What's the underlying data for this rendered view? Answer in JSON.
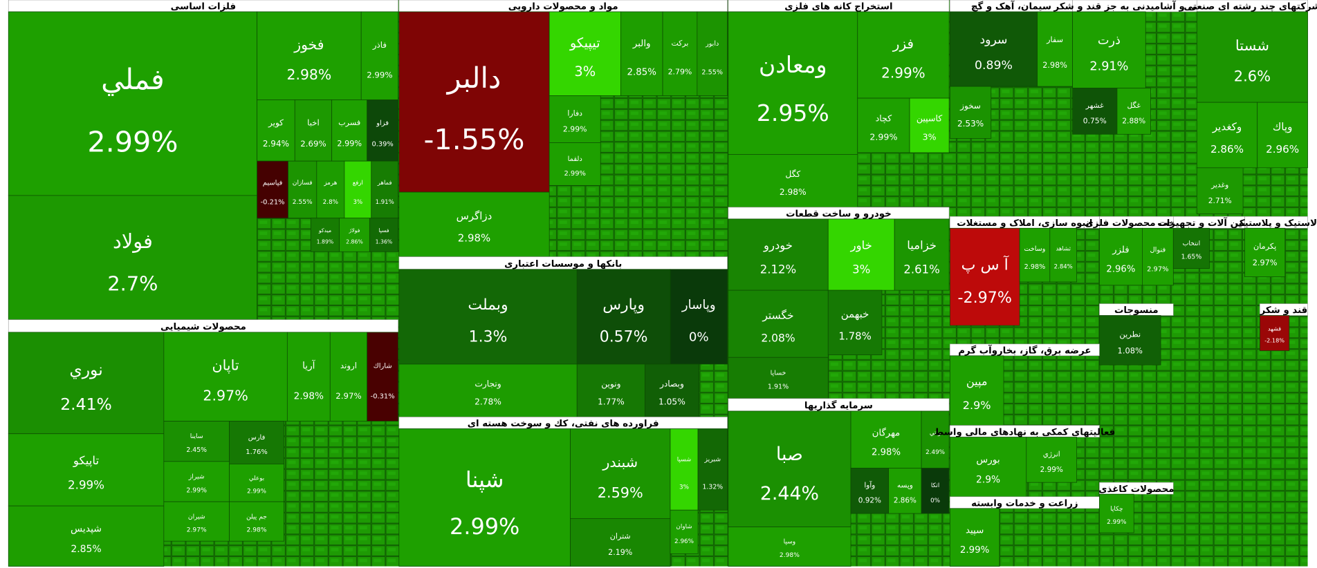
{
  "chart_data": {
    "type": "treemap",
    "sectors": [
      {
        "title": "فلزات اساسی",
        "tiles": [
          {
            "name": "فملي",
            "value": 2.99,
            "value_label": "2.99%"
          },
          {
            "name": "فولاد",
            "value": 2.7,
            "value_label": "2.7%"
          },
          {
            "name": "فخوز",
            "value": 2.98,
            "value_label": "2.98%"
          },
          {
            "name": "فاذر",
            "value": 2.99,
            "value_label": "2.99%"
          },
          {
            "name": "کویر",
            "value": 2.94,
            "value_label": "2.94%"
          },
          {
            "name": "اخبا",
            "value": 2.69,
            "value_label": "2.69%"
          },
          {
            "name": "فسرب",
            "value": 2.99,
            "value_label": "2.99%"
          },
          {
            "name": "فزاو",
            "value": 0.39,
            "value_label": "0.39%"
          },
          {
            "name": "فپاسیم",
            "value": -0.21,
            "value_label": "-0.21%"
          },
          {
            "name": "فسازان",
            "value": 2.55,
            "value_label": "2.55%"
          },
          {
            "name": "هرمز",
            "value": 2.8,
            "value_label": "2.8%"
          },
          {
            "name": "ارفع",
            "value": 3,
            "value_label": "3%"
          },
          {
            "name": "فماهر",
            "value": 1.91,
            "value_label": "1.91%"
          },
          {
            "name": "ميدكو",
            "value": 1.89,
            "value_label": "1.89%"
          },
          {
            "name": "فولاژ",
            "value": 2.86,
            "value_label": "2.86%"
          },
          {
            "name": "فسپا",
            "value": 1.36,
            "value_label": "1.36%"
          }
        ]
      },
      {
        "title": "محصولات شیمیایی",
        "tiles": [
          {
            "name": "نوري",
            "value": 2.41,
            "value_label": "2.41%"
          },
          {
            "name": "تاپيكو",
            "value": 2.99,
            "value_label": "2.99%"
          },
          {
            "name": "شپديس",
            "value": 2.85,
            "value_label": "2.85%"
          },
          {
            "name": "تاپان",
            "value": 2.97,
            "value_label": "2.97%"
          },
          {
            "name": "آريا",
            "value": 2.98,
            "value_label": "2.98%"
          },
          {
            "name": "اروند",
            "value": 2.97,
            "value_label": "2.97%"
          },
          {
            "name": "شاراك",
            "value": -0.31,
            "value_label": "-0.31%"
          },
          {
            "name": "ساينا",
            "value": 2.45,
            "value_label": "2.45%"
          },
          {
            "name": "فارس",
            "value": 1.76,
            "value_label": "1.76%"
          },
          {
            "name": "شيراز",
            "value": 2.99,
            "value_label": "2.99%"
          },
          {
            "name": "بوعلي",
            "value": 2.99,
            "value_label": "2.99%"
          },
          {
            "name": "شيران",
            "value": 2.97,
            "value_label": "2.97%"
          },
          {
            "name": "جم پيلن",
            "value": 2.98,
            "value_label": "2.98%"
          }
        ]
      },
      {
        "title": "مواد و محصولات دارویی",
        "tiles": [
          {
            "name": "دالبر",
            "value": -1.55,
            "value_label": "-1.55%"
          },
          {
            "name": "دزاگرس",
            "value": 2.98,
            "value_label": "2.98%"
          },
          {
            "name": "تيپيكو",
            "value": 3,
            "value_label": "3%"
          },
          {
            "name": "والبر",
            "value": 2.85,
            "value_label": "2.85%"
          },
          {
            "name": "بركت",
            "value": 2.79,
            "value_label": "2.79%"
          },
          {
            "name": "دابور",
            "value": 2.55,
            "value_label": "2.55%"
          },
          {
            "name": "دفارا",
            "value": 2.99,
            "value_label": "2.99%"
          },
          {
            "name": "دلقما",
            "value": 2.99,
            "value_label": "2.99%"
          }
        ]
      },
      {
        "title": "بانکها و موسسات اعتباری",
        "tiles": [
          {
            "name": "وبملت",
            "value": 1.3,
            "value_label": "1.3%"
          },
          {
            "name": "وپارس",
            "value": 0.57,
            "value_label": "0.57%"
          },
          {
            "name": "وپاسار",
            "value": 0,
            "value_label": "0%"
          },
          {
            "name": "وتجارت",
            "value": 2.78,
            "value_label": "2.78%"
          },
          {
            "name": "ونوين",
            "value": 1.77,
            "value_label": "1.77%"
          },
          {
            "name": "وبصادر",
            "value": 1.05,
            "value_label": "1.05%"
          }
        ]
      },
      {
        "title": "فراورده های نفتی، کك و سوخت هسته ای",
        "tiles": [
          {
            "name": "شپنا",
            "value": 2.99,
            "value_label": "2.99%"
          },
          {
            "name": "شبندر",
            "value": 2.59,
            "value_label": "2.59%"
          },
          {
            "name": "شتران",
            "value": 2.19,
            "value_label": "2.19%"
          },
          {
            "name": "شسپا",
            "value": 3,
            "value_label": "3%"
          },
          {
            "name": "شبريز",
            "value": 1.32,
            "value_label": "1.32%"
          },
          {
            "name": "شاوان",
            "value": 2.96,
            "value_label": "2.96%"
          }
        ]
      },
      {
        "title": "استخراج کانه های فلزی",
        "tiles": [
          {
            "name": "ومعادن",
            "value": 2.95,
            "value_label": "2.95%"
          },
          {
            "name": "كگل",
            "value": 2.98,
            "value_label": "2.98%"
          },
          {
            "name": "فزر",
            "value": 2.99,
            "value_label": "2.99%"
          },
          {
            "name": "كچاد",
            "value": 2.99,
            "value_label": "2.99%"
          },
          {
            "name": "كاسپين",
            "value": 3,
            "value_label": "3%"
          }
        ]
      },
      {
        "title": "خودرو و ساخت قطعات",
        "tiles": [
          {
            "name": "خودرو",
            "value": 2.12,
            "value_label": "2.12%"
          },
          {
            "name": "خاور",
            "value": 3,
            "value_label": "3%"
          },
          {
            "name": "خزاميا",
            "value": 2.61,
            "value_label": "2.61%"
          },
          {
            "name": "خگستر",
            "value": 2.08,
            "value_label": "2.08%"
          },
          {
            "name": "خساپا",
            "value": 1.91,
            "value_label": "1.91%"
          },
          {
            "name": "خبهمن",
            "value": 1.78,
            "value_label": "1.78%"
          }
        ]
      },
      {
        "title": "سرمایه گذاریها",
        "tiles": [
          {
            "name": "صبا",
            "value": 2.44,
            "value_label": "2.44%"
          },
          {
            "name": "وسپا",
            "value": 2.98,
            "value_label": "2.98%"
          },
          {
            "name": "مهرگان",
            "value": 2.98,
            "value_label": "2.98%"
          },
          {
            "name": "واتي",
            "value": 2.49,
            "value_label": "2.49%"
          },
          {
            "name": "وآوا",
            "value": 0.92,
            "value_label": "0.92%"
          },
          {
            "name": "وپسه",
            "value": 2.86,
            "value_label": "2.86%"
          },
          {
            "name": "اتكا",
            "value": 0,
            "value_label": "0%"
          }
        ]
      },
      {
        "title": "سیمان، آهک و گچ",
        "tiles": [
          {
            "name": "سرود",
            "value": 0.89,
            "value_label": "0.89%"
          },
          {
            "name": "سفار",
            "value": 2.98,
            "value_label": "2.98%"
          },
          {
            "name": "سخوز",
            "value": 2.53,
            "value_label": "2.53%"
          }
        ]
      },
      {
        "title": "غذایی و آشامیدنی به جز قند و شکر",
        "tiles": [
          {
            "name": "ذرت",
            "value": 2.91,
            "value_label": "2.91%"
          },
          {
            "name": "غشهر",
            "value": 0.75,
            "value_label": "0.75%"
          },
          {
            "name": "غگل",
            "value": 2.88,
            "value_label": "2.88%"
          }
        ]
      },
      {
        "title": "شرکتهای چند رشته ای صنعتی",
        "tiles": [
          {
            "name": "شستا",
            "value": 2.6,
            "value_label": "2.6%"
          },
          {
            "name": "وكغدير",
            "value": 2.86,
            "value_label": "2.86%"
          },
          {
            "name": "وپاك",
            "value": 2.96,
            "value_label": "2.96%"
          },
          {
            "name": "وغدير",
            "value": 2.71,
            "value_label": "2.71%"
          }
        ]
      },
      {
        "title": "انبوه سازی، املاک و مستغلات",
        "tiles": [
          {
            "name": "آ س پ",
            "value": -2.97,
            "value_label": "-2.97%"
          },
          {
            "name": "وساخت",
            "value": 2.98,
            "value_label": "2.98%"
          },
          {
            "name": "ثشاهد",
            "value": 2.84,
            "value_label": "2.84%"
          }
        ]
      },
      {
        "title": "ساخت محصولات فلزی",
        "tiles": [
          {
            "name": "فلزر",
            "value": 2.96,
            "value_label": "2.96%"
          },
          {
            "name": "فنوال",
            "value": 2.97,
            "value_label": "2.97%"
          }
        ]
      },
      {
        "title": "ماشین آلات و تجهیزات",
        "tiles": [
          {
            "name": "انتخاب",
            "value": 1.65,
            "value_label": "1.65%"
          }
        ]
      },
      {
        "title": "لاستیک و پلاستیک",
        "tiles": [
          {
            "name": "پكرمان",
            "value": 2.97,
            "value_label": "2.97%"
          }
        ]
      },
      {
        "title": "منسوجات",
        "tiles": [
          {
            "name": "نطرين",
            "value": 1.08,
            "value_label": "1.08%"
          }
        ]
      },
      {
        "title": "قند و شکر",
        "tiles": [
          {
            "name": "قشهد",
            "value": -2.18,
            "value_label": "-2.18%"
          }
        ]
      },
      {
        "title": "عرضه برق، گاز، بخاروآب گرم",
        "tiles": [
          {
            "name": "مپين",
            "value": 2.9,
            "value_label": "2.9%"
          }
        ]
      },
      {
        "title": "فعالیتهای کمکی به نهادهای مالی واسط",
        "tiles": [
          {
            "name": "بورس",
            "value": 2.9,
            "value_label": "2.9%"
          },
          {
            "name": "انرژي",
            "value": 2.99,
            "value_label": "2.99%"
          }
        ]
      },
      {
        "title": "زراعت و خدمات وابسته",
        "tiles": [
          {
            "name": "سپيد",
            "value": 2.99,
            "value_label": "2.99%"
          }
        ]
      },
      {
        "title": "محصولات کاغذی",
        "tiles": [
          {
            "name": "چكاپا",
            "value": 2.99,
            "value_label": "2.99%"
          }
        ]
      }
    ]
  }
}
